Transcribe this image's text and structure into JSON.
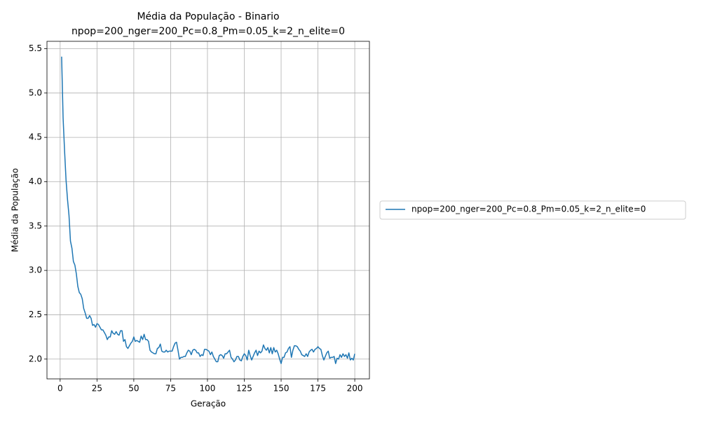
{
  "chart_data": {
    "type": "line",
    "title": "Média da População - Binario",
    "subtitle": "npop=200_nger=200_Pc=0.8_Pm=0.05_k=2_n_elite=0",
    "xlabel": "Geração",
    "ylabel": "Média da População",
    "x": [
      1,
      2,
      3,
      4,
      5,
      6,
      7,
      8,
      9,
      10,
      11,
      12,
      13,
      14,
      15,
      16,
      17,
      18,
      19,
      20,
      21,
      22,
      23,
      24,
      25,
      26,
      27,
      28,
      29,
      30,
      31,
      32,
      33,
      34,
      35,
      36,
      37,
      38,
      39,
      40,
      41,
      42,
      43,
      44,
      45,
      46,
      47,
      48,
      49,
      50,
      51,
      52,
      53,
      54,
      55,
      56,
      57,
      58,
      59,
      60,
      61,
      62,
      63,
      64,
      65,
      66,
      67,
      68,
      69,
      70,
      71,
      72,
      73,
      74,
      75,
      76,
      77,
      78,
      79,
      80,
      81,
      82,
      83,
      84,
      85,
      86,
      87,
      88,
      89,
      90,
      91,
      92,
      93,
      94,
      95,
      96,
      97,
      98,
      99,
      100,
      101,
      102,
      103,
      104,
      105,
      106,
      107,
      108,
      109,
      110,
      111,
      112,
      113,
      114,
      115,
      116,
      117,
      118,
      119,
      120,
      121,
      122,
      123,
      124,
      125,
      126,
      127,
      128,
      129,
      130,
      131,
      132,
      133,
      134,
      135,
      136,
      137,
      138,
      139,
      140,
      141,
      142,
      143,
      144,
      145,
      146,
      147,
      148,
      149,
      150,
      151,
      152,
      153,
      154,
      155,
      156,
      157,
      158,
      159,
      160,
      161,
      162,
      163,
      164,
      165,
      166,
      167,
      168,
      169,
      170,
      171,
      172,
      173,
      174,
      175,
      176,
      177,
      178,
      179,
      180,
      181,
      182,
      183,
      184,
      185,
      186,
      187,
      188,
      189,
      190,
      191,
      192,
      193,
      194,
      195,
      196,
      197,
      198,
      199,
      200
    ],
    "series": [
      {
        "name": "npop=200_nger=200_Pc=0.8_Pm=0.05_k=2_n_elite=0",
        "color": "#1f77b4",
        "values": [
          5.41,
          4.72,
          4.35,
          4.02,
          3.8,
          3.62,
          3.33,
          3.25,
          3.1,
          3.06,
          2.96,
          2.82,
          2.75,
          2.73,
          2.68,
          2.57,
          2.52,
          2.46,
          2.46,
          2.49,
          2.46,
          2.38,
          2.39,
          2.36,
          2.4,
          2.39,
          2.36,
          2.33,
          2.33,
          2.3,
          2.27,
          2.22,
          2.25,
          2.25,
          2.32,
          2.29,
          2.28,
          2.31,
          2.28,
          2.27,
          2.32,
          2.32,
          2.2,
          2.22,
          2.14,
          2.12,
          2.15,
          2.18,
          2.2,
          2.25,
          2.2,
          2.21,
          2.2,
          2.19,
          2.26,
          2.22,
          2.28,
          2.22,
          2.22,
          2.2,
          2.1,
          2.08,
          2.07,
          2.06,
          2.06,
          2.12,
          2.13,
          2.17,
          2.09,
          2.08,
          2.08,
          2.1,
          2.08,
          2.09,
          2.09,
          2.09,
          2.14,
          2.18,
          2.19,
          2.1,
          2.0,
          2.02,
          2.02,
          2.03,
          2.03,
          2.07,
          2.1,
          2.09,
          2.05,
          2.1,
          2.11,
          2.1,
          2.07,
          2.07,
          2.03,
          2.05,
          2.04,
          2.11,
          2.11,
          2.1,
          2.09,
          2.05,
          2.08,
          2.03,
          2.0,
          1.97,
          1.97,
          2.04,
          2.05,
          2.04,
          2.01,
          2.06,
          2.06,
          2.08,
          2.1,
          2.02,
          2.0,
          1.97,
          1.99,
          2.03,
          2.03,
          1.99,
          1.98,
          2.03,
          2.06,
          2.04,
          1.99,
          2.1,
          2.04,
          1.99,
          2.03,
          2.07,
          2.1,
          2.04,
          2.09,
          2.07,
          2.09,
          2.16,
          2.12,
          2.1,
          2.13,
          2.07,
          2.13,
          2.06,
          2.13,
          2.08,
          2.1,
          2.06,
          2.0,
          1.95,
          2.02,
          2.02,
          2.07,
          2.08,
          2.12,
          2.14,
          2.02,
          2.1,
          2.15,
          2.15,
          2.14,
          2.11,
          2.09,
          2.05,
          2.04,
          2.03,
          2.06,
          2.03,
          2.08,
          2.1,
          2.11,
          2.08,
          2.11,
          2.12,
          2.14,
          2.12,
          2.11,
          2.04,
          1.99,
          2.03,
          2.07,
          2.09,
          2.01,
          2.02,
          2.02,
          2.03,
          1.95,
          2.01,
          2.0,
          2.05,
          2.02,
          2.06,
          2.03,
          2.05,
          2.01,
          2.07,
          1.99,
          2.01,
          1.99,
          2.06
        ]
      }
    ],
    "xlim": [
      -8.95,
      209.95
    ],
    "xticks": [
      0,
      25,
      50,
      75,
      100,
      125,
      150,
      175,
      200
    ],
    "ylim": [
      1.777,
      5.583
    ],
    "yticks": [
      {
        "value": 2,
        "label": "2.0"
      },
      2.5,
      {
        "value": 3,
        "label": "3.0"
      },
      3.5,
      {
        "value": 4,
        "label": "4.0"
      },
      4.5,
      {
        "value": 5,
        "label": "5.0"
      },
      5.5
    ],
    "grid": true,
    "legend": "right"
  }
}
